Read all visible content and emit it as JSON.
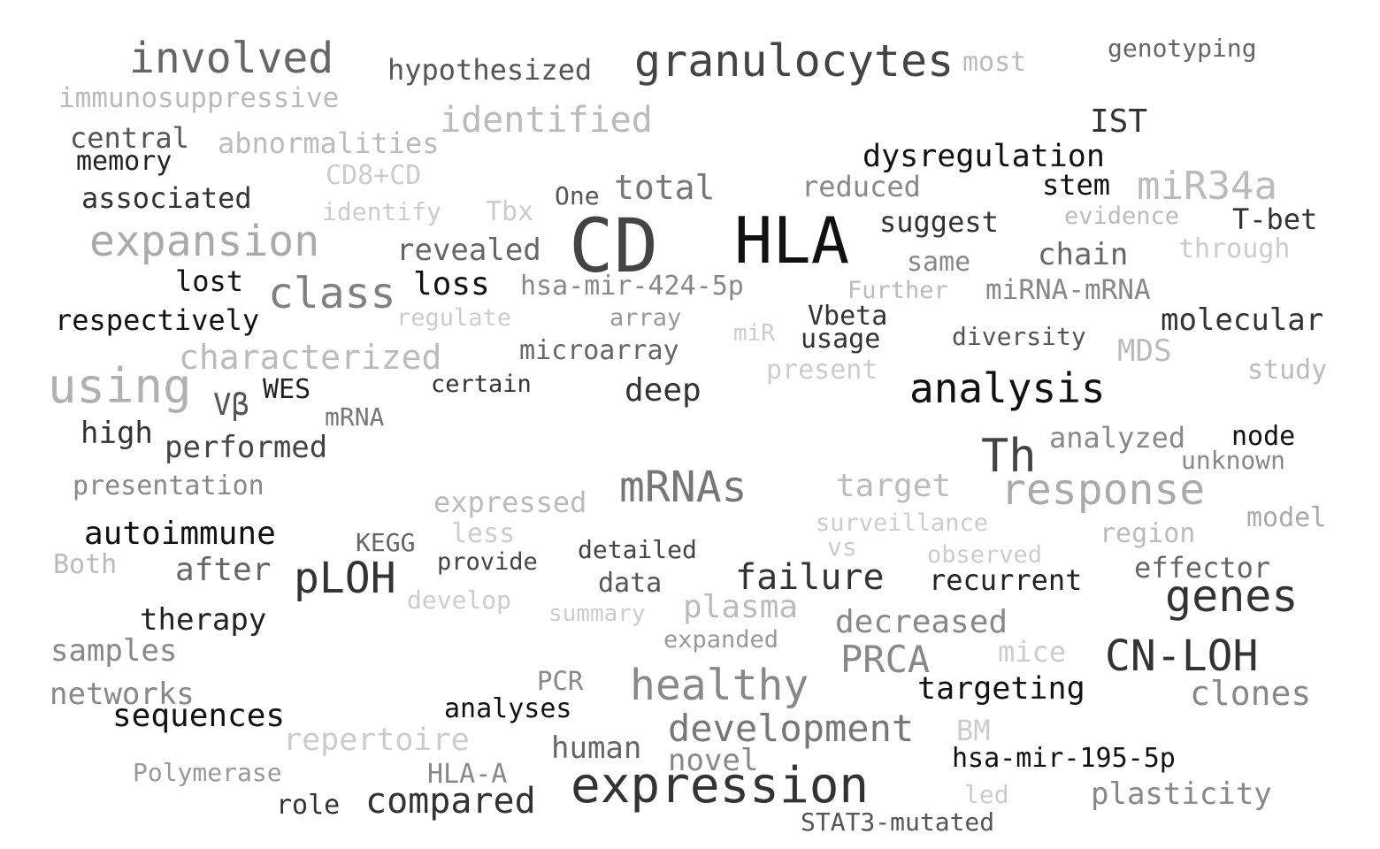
{
  "words": [
    {
      "text": "CD",
      "color": "#444444"
    },
    {
      "text": "HLA",
      "color": "#111111"
    },
    {
      "text": "expression",
      "color": "#333333"
    },
    {
      "text": "granulocytes",
      "color": "#444444"
    },
    {
      "text": "involved",
      "color": "#666666"
    },
    {
      "text": "expansion",
      "color": "#aaaaaa"
    },
    {
      "text": "using",
      "color": "#b0b0b0"
    },
    {
      "text": "class",
      "color": "#808080"
    },
    {
      "text": "analysis",
      "color": "#111111"
    },
    {
      "text": "response",
      "color": "#aaaaaa"
    },
    {
      "text": "genes",
      "color": "#333333"
    },
    {
      "text": "CN-LOH",
      "color": "#333333"
    },
    {
      "text": "Th",
      "color": "#444444"
    },
    {
      "text": "mRNAs",
      "color": "#777777"
    },
    {
      "text": "healthy",
      "color": "#888888"
    },
    {
      "text": "pLOH",
      "color": "#333333"
    },
    {
      "text": "miR34a",
      "color": "#bbbbbb"
    },
    {
      "text": "development",
      "color": "#777777"
    },
    {
      "text": "identified",
      "color": "#bbbbbb"
    },
    {
      "text": "characterized",
      "color": "#bbbbbb"
    },
    {
      "text": "PRCA",
      "color": "#888888"
    },
    {
      "text": "failure",
      "color": "#333333"
    },
    {
      "text": "compared",
      "color": "#333333"
    },
    {
      "text": "hypothesized",
      "color": "#555555"
    },
    {
      "text": "immunosuppressive",
      "color": "#bbbbbb"
    },
    {
      "text": "genotyping",
      "color": "#666666"
    },
    {
      "text": "most",
      "color": "#bbbbbb"
    },
    {
      "text": "central",
      "color": "#555555"
    },
    {
      "text": "abnormalities",
      "color": "#bbbbbb"
    },
    {
      "text": "memory",
      "color": "#222222"
    },
    {
      "text": "IST",
      "color": "#333333"
    },
    {
      "text": "dysregulation",
      "color": "#111111"
    },
    {
      "text": "CD8+CD",
      "color": "#cccccc"
    },
    {
      "text": "associated",
      "color": "#333333"
    },
    {
      "text": "total",
      "color": "#777777"
    },
    {
      "text": "reduced",
      "color": "#888888"
    },
    {
      "text": "stem",
      "color": "#111111"
    },
    {
      "text": "One",
      "color": "#555555"
    },
    {
      "text": "identify",
      "color": "#cccccc"
    },
    {
      "text": "Tbx",
      "color": "#cccccc"
    },
    {
      "text": "evidence",
      "color": "#bbbbbb"
    },
    {
      "text": "T-bet",
      "color": "#333333"
    },
    {
      "text": "suggest",
      "color": "#333333"
    },
    {
      "text": "revealed",
      "color": "#666666"
    },
    {
      "text": "through",
      "color": "#cccccc"
    },
    {
      "text": "chain",
      "color": "#666666"
    },
    {
      "text": "same",
      "color": "#888888"
    },
    {
      "text": "lost",
      "color": "#111111"
    },
    {
      "text": "loss",
      "color": "#111111"
    },
    {
      "text": "hsa-mir-424-5p",
      "color": "#888888"
    },
    {
      "text": "Further",
      "color": "#bbbbbb"
    },
    {
      "text": "miRNA-mRNA",
      "color": "#888888"
    },
    {
      "text": "respectively",
      "color": "#111111"
    },
    {
      "text": "regulate",
      "color": "#cccccc"
    },
    {
      "text": "array",
      "color": "#999999"
    },
    {
      "text": "Vbeta",
      "color": "#333333"
    },
    {
      "text": "molecular",
      "color": "#333333"
    },
    {
      "text": "miR",
      "color": "#cccccc"
    },
    {
      "text": "usage",
      "color": "#333333"
    },
    {
      "text": "diversity",
      "color": "#555555"
    },
    {
      "text": "MDS",
      "color": "#bbbbbb"
    },
    {
      "text": "microarray",
      "color": "#666666"
    },
    {
      "text": "present",
      "color": "#cccccc"
    },
    {
      "text": "study",
      "color": "#bbbbbb"
    },
    {
      "text": "WES",
      "color": "#222222"
    },
    {
      "text": "certain",
      "color": "#333333"
    },
    {
      "text": "deep",
      "color": "#333333"
    },
    {
      "text": "Vβ",
      "color": "#555555"
    },
    {
      "text": "mRNA",
      "color": "#777777"
    },
    {
      "text": "high",
      "color": "#333333"
    },
    {
      "text": "performed",
      "color": "#444444"
    },
    {
      "text": "analyzed",
      "color": "#888888"
    },
    {
      "text": "node",
      "color": "#111111"
    },
    {
      "text": "unknown",
      "color": "#888888"
    },
    {
      "text": "presentation",
      "color": "#888888"
    },
    {
      "text": "target",
      "color": "#bbbbbb"
    },
    {
      "text": "expressed",
      "color": "#bbbbbb"
    },
    {
      "text": "surveillance",
      "color": "#cccccc"
    },
    {
      "text": "model",
      "color": "#aaaaaa"
    },
    {
      "text": "autoimmune",
      "color": "#111111"
    },
    {
      "text": "KEGG",
      "color": "#666666"
    },
    {
      "text": "less",
      "color": "#cccccc"
    },
    {
      "text": "region",
      "color": "#bbbbbb"
    },
    {
      "text": "Both",
      "color": "#bbbbbb"
    },
    {
      "text": "after",
      "color": "#666666"
    },
    {
      "text": "provide",
      "color": "#444444"
    },
    {
      "text": "detailed",
      "color": "#444444"
    },
    {
      "text": "vs",
      "color": "#cccccc"
    },
    {
      "text": "observed",
      "color": "#cccccc"
    },
    {
      "text": "effector",
      "color": "#666666"
    },
    {
      "text": "recurrent",
      "color": "#222222"
    },
    {
      "text": "data",
      "color": "#555555"
    },
    {
      "text": "develop",
      "color": "#cccccc"
    },
    {
      "text": "summary",
      "color": "#cccccc"
    },
    {
      "text": "plasma",
      "color": "#bbbbbb"
    },
    {
      "text": "therapy",
      "color": "#222222"
    },
    {
      "text": "decreased",
      "color": "#888888"
    },
    {
      "text": "expanded",
      "color": "#999999"
    },
    {
      "text": "samples",
      "color": "#888888"
    },
    {
      "text": "mice",
      "color": "#cccccc"
    },
    {
      "text": "PCR",
      "color": "#888888"
    },
    {
      "text": "networks",
      "color": "#888888"
    },
    {
      "text": "targeting",
      "color": "#111111"
    },
    {
      "text": "clones",
      "color": "#888888"
    },
    {
      "text": "sequences",
      "color": "#111111"
    },
    {
      "text": "analyses",
      "color": "#111111"
    },
    {
      "text": "repertoire",
      "color": "#cccccc"
    },
    {
      "text": "BM",
      "color": "#cccccc"
    },
    {
      "text": "human",
      "color": "#666666"
    },
    {
      "text": "hsa-mir-195-5p",
      "color": "#111111"
    },
    {
      "text": "Polymerase",
      "color": "#999999"
    },
    {
      "text": "HLA-A",
      "color": "#888888"
    },
    {
      "text": "novel",
      "color": "#888888"
    },
    {
      "text": "led",
      "color": "#cccccc"
    },
    {
      "text": "plasticity",
      "color": "#888888"
    },
    {
      "text": "role",
      "color": "#333333"
    },
    {
      "text": "STAT3-mutated",
      "color": "#555555"
    }
  ]
}
